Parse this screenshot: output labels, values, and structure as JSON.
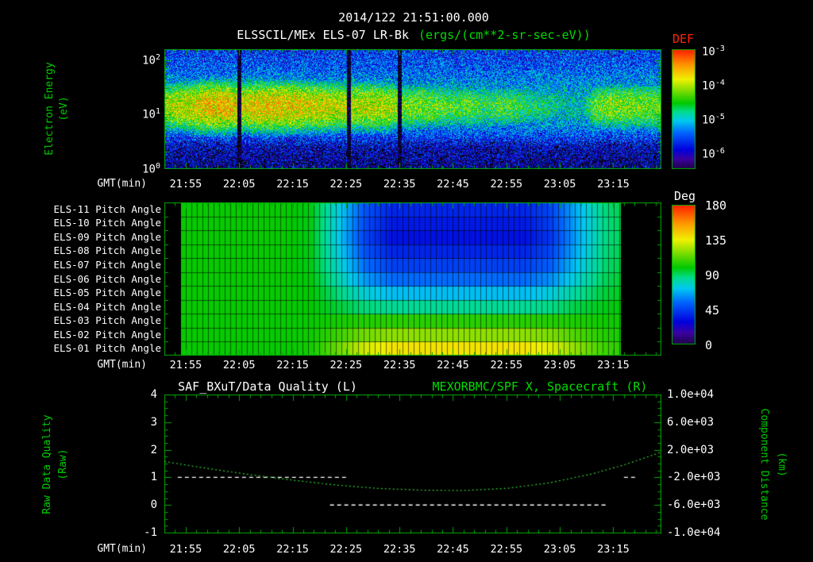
{
  "page": {
    "title_datetime": "2014/122 21:51:00.000",
    "title_instrument": "ELSSCIL/MEx ELS-07 LR-Bk",
    "title_units": "(ergs/(cm**2-sr-sec-eV))",
    "gmt_label": "GMT(min)"
  },
  "colors": {
    "background": "#000000",
    "axis_green": "#00a800",
    "label_green": "#00cc00",
    "text_white": "#ffffff",
    "def_label_red": "#ff2200",
    "units_green": "#00dd00",
    "rainbow": [
      {
        "t": 0.0,
        "c": "#1e0046"
      },
      {
        "t": 0.08,
        "c": "#3c00a0"
      },
      {
        "t": 0.16,
        "c": "#0000dc"
      },
      {
        "t": 0.3,
        "c": "#0064ff"
      },
      {
        "t": 0.4,
        "c": "#00c8f0"
      },
      {
        "t": 0.48,
        "c": "#00dc8c"
      },
      {
        "t": 0.55,
        "c": "#00c800"
      },
      {
        "t": 0.65,
        "c": "#78dc00"
      },
      {
        "t": 0.75,
        "c": "#f0f000"
      },
      {
        "t": 0.87,
        "c": "#ff9600"
      },
      {
        "t": 1.0,
        "c": "#ff1e00"
      }
    ]
  },
  "time_axis": {
    "total_minutes": 93,
    "start_label": "21:51",
    "tick_minutes": [
      4,
      14,
      24,
      34,
      44,
      54,
      64,
      74,
      84
    ],
    "tick_labels": [
      "21:55",
      "22:05",
      "22:15",
      "22:25",
      "22:35",
      "22:45",
      "22:55",
      "23:05",
      "23:15"
    ],
    "minor_step": 2
  },
  "chart_data": [
    {
      "type": "heatmap",
      "name": "electron-energy-spectrogram",
      "title": "ELSSCIL/MEx ELS-07 LR-Bk",
      "units": "ergs/(cm**2-sr-sec-eV)",
      "ylabel": "Electron Energy",
      "ylabel_units": "(eV)",
      "y_scale": "log",
      "y_range_ev": [
        1,
        158
      ],
      "y_log_range": [
        0,
        2.2
      ],
      "y_ticks": [
        {
          "exp": "2",
          "logE": 2
        },
        {
          "exp": "1",
          "logE": 1
        },
        {
          "exp": "0",
          "logE": 0
        }
      ],
      "colorbar": {
        "label": "DEF",
        "range_exp": [
          -3,
          -6.5
        ],
        "ticks": [
          -3,
          -4,
          -5,
          -6
        ]
      },
      "value_range": [
        -6.5,
        -3
      ],
      "band_center_logE": 1.15,
      "band_two_sigma_sq": 0.18,
      "background_points": [
        {
          "logE": 0.0,
          "v": -6.2
        },
        {
          "logE": 0.4,
          "v": -6.0
        },
        {
          "logE": 0.6,
          "v": -5.6
        },
        {
          "logE": 0.8,
          "v": -5.3
        },
        {
          "logE": 1.0,
          "v": -5.05
        },
        {
          "logE": 1.3,
          "v": -5.05
        },
        {
          "logE": 1.6,
          "v": -5.3
        },
        {
          "logE": 1.9,
          "v": -5.55
        },
        {
          "logE": 2.2,
          "v": -5.7
        }
      ],
      "column_minutes": [
        0,
        3,
        6,
        9,
        12,
        15,
        18,
        21,
        24,
        27,
        30,
        33,
        36,
        39,
        42,
        45,
        48,
        51,
        54,
        57,
        60,
        63,
        66,
        69,
        72,
        75,
        78,
        81,
        84,
        87,
        90
      ],
      "column_peaks": [
        -4.1,
        -4.0,
        -3.8,
        -3.7,
        -3.7,
        -3.9,
        -3.75,
        -3.75,
        -3.8,
        -3.9,
        -3.9,
        -4.0,
        -4.0,
        -4.0,
        -4.05,
        -4.3,
        -4.3,
        -4.35,
        -4.5,
        -4.4,
        -4.6,
        -4.5,
        -4.55,
        -4.7,
        -4.75,
        -5.0,
        -5.0,
        -4.35,
        -4.25,
        -4.25,
        -4.3
      ],
      "gap_minutes": [
        14,
        34.5,
        44
      ],
      "gap_half_width": 0.35,
      "noise_amp": 0.65
    },
    {
      "type": "heatmap",
      "name": "pitch-angle-panel",
      "rows": [
        "ELS-11 Pitch Angle",
        "ELS-10 Pitch Angle",
        "ELS-09 Pitch Angle",
        "ELS-08 Pitch Angle",
        "ELS-07 Pitch Angle",
        "ELS-06 Pitch Angle",
        "ELS-05 Pitch Angle",
        "ELS-04 Pitch Angle",
        "ELS-03 Pitch Angle",
        "ELS-02 Pitch Angle",
        "ELS-01 Pitch Angle"
      ],
      "colorbar": {
        "label": "Deg",
        "range": [
          0,
          180
        ],
        "ticks": [
          180,
          135,
          90,
          45,
          0
        ]
      },
      "data_window_minutes": [
        3,
        85.5
      ],
      "column_minutes": [
        2.5,
        7.5,
        12.5,
        17.5,
        22.5,
        27.5,
        32.5,
        37.5,
        42.5,
        47.5,
        52.5,
        57.5,
        62.5,
        67.5,
        72.5,
        77.5,
        82.5,
        87.5
      ],
      "values_deg": [
        [
          100,
          100,
          100,
          100,
          100,
          97,
          75,
          50,
          38,
          38,
          38,
          38,
          38,
          38,
          47,
          69,
          88,
          94
        ],
        [
          100,
          100,
          100,
          100,
          100,
          97,
          74,
          48,
          35,
          35,
          35,
          35,
          35,
          35,
          45,
          68,
          87,
          94
        ],
        [
          100,
          100,
          100,
          100,
          100,
          97,
          73,
          46,
          33,
          33,
          33,
          33,
          33,
          33,
          43,
          67,
          87,
          93
        ],
        [
          100,
          100,
          100,
          100,
          100,
          97,
          75,
          50,
          38,
          38,
          38,
          38,
          38,
          38,
          47,
          69,
          88,
          94
        ],
        [
          100,
          100,
          100,
          100,
          100,
          97,
          78,
          56,
          45,
          45,
          45,
          45,
          45,
          45,
          53,
          73,
          89,
          95
        ],
        [
          100,
          100,
          100,
          100,
          100,
          98,
          82,
          64,
          55,
          55,
          55,
          55,
          55,
          55,
          62,
          78,
          91,
          96
        ],
        [
          100,
          100,
          100,
          100,
          100,
          99,
          88,
          76,
          70,
          70,
          70,
          70,
          70,
          70,
          75,
          85,
          94,
          97
        ],
        [
          100,
          100,
          100,
          100,
          100,
          99,
          94,
          88,
          85,
          85,
          85,
          85,
          85,
          85,
          87,
          93,
          97,
          99
        ],
        [
          100,
          100,
          100,
          100,
          100,
          100,
          102,
          104,
          105,
          105,
          105,
          105,
          105,
          105,
          104,
          103,
          101,
          101
        ],
        [
          100,
          100,
          100,
          100,
          100,
          101,
          108,
          116,
          120,
          120,
          120,
          120,
          120,
          120,
          117,
          110,
          104,
          102
        ],
        [
          100,
          100,
          100,
          100,
          100,
          102,
          115,
          130,
          138,
          138,
          138,
          138,
          138,
          138,
          132,
          119,
          108,
          104
        ]
      ]
    },
    {
      "type": "line",
      "name": "quality-and-distance-timeseries",
      "title_left": "SAF_BXuT/Data Quality (L)",
      "title_right": "MEXORBMC/SPF X, Spacecraft (R)",
      "ylabel_left1": "Raw Data Quality",
      "ylabel_left2": "(Raw)",
      "ylabel_right1": "Component Distance",
      "ylabel_right2": "(km)",
      "y_left": {
        "range": [
          -1,
          4
        ],
        "ticks": [
          4,
          3,
          2,
          1,
          0,
          -1
        ]
      },
      "y_right": {
        "range": [
          -10000,
          10000
        ],
        "tick_labels": [
          "1.0e+04",
          "6.0e+03",
          "2.0e+03",
          "-2.0e+03",
          "-6.0e+03",
          "-1.0e+04"
        ]
      },
      "series": [
        {
          "name": "SAF_BXuT/Data Quality",
          "axis": "left",
          "color": "#ffffff",
          "style": "dashed",
          "segments": [
            {
              "start_min": 2.5,
              "end_min": 34,
              "value": 1
            },
            {
              "start_min": 31,
              "end_min": 83,
              "value": 0
            },
            {
              "start_min": 86,
              "end_min": 88.5,
              "value": 1
            }
          ]
        },
        {
          "name": "MEXORBMC/SPF X, Spacecraft",
          "axis": "right",
          "color": "#33cc33",
          "style": "dashed",
          "points_min": [
            0,
            8,
            16,
            24,
            32,
            40,
            48,
            56,
            64,
            72,
            80,
            86,
            93
          ],
          "points_km": [
            300,
            -700,
            -1600,
            -2400,
            -3100,
            -3600,
            -3850,
            -3900,
            -3600,
            -2800,
            -1500,
            -200,
            1650
          ]
        }
      ]
    }
  ]
}
